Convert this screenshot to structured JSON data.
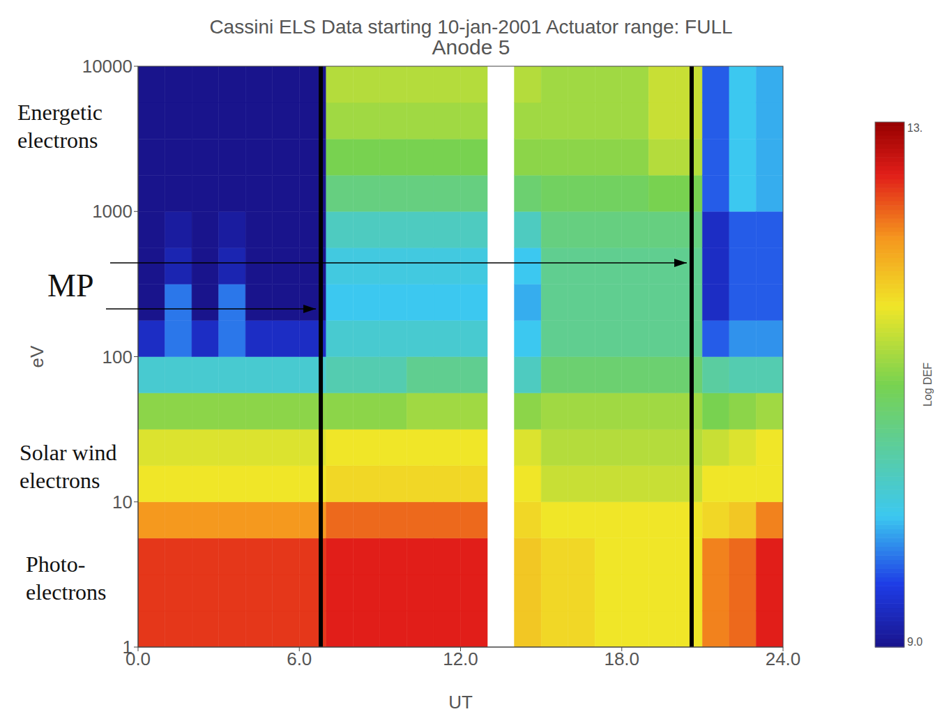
{
  "chart_data": {
    "type": "heatmap",
    "title": "Cassini ELS Data starting 10-jan-2001 Actuator range: FULL",
    "subtitle": "Anode 5",
    "x_label": "UT",
    "y_label": "eV",
    "log": "y",
    "grid": false,
    "xlim": [
      0,
      24
    ],
    "xticks": [
      {
        "value": 0,
        "label": "0.0"
      },
      {
        "value": 6,
        "label": "6.0"
      },
      {
        "value": 12,
        "label": "12.0"
      },
      {
        "value": 18,
        "label": "18.0"
      },
      {
        "value": 24,
        "label": "24.0"
      }
    ],
    "ylim": [
      1,
      10000
    ],
    "yticks": [
      1,
      10,
      100,
      1000,
      10000
    ],
    "x_edges": [
      0,
      1,
      2,
      3,
      4,
      5,
      6,
      7,
      8,
      9,
      10,
      11,
      12,
      13,
      14,
      15,
      16,
      17,
      18,
      19,
      20,
      21,
      22,
      23,
      24
    ],
    "y_edges": [
      1,
      1.778,
      3.162,
      5.623,
      10,
      17.78,
      31.62,
      56.23,
      100,
      177.8,
      316.2,
      562.3,
      1000,
      1778,
      3162,
      5623,
      10000
    ],
    "cells": [
      [
        12.5,
        12.5,
        12.5,
        12.1,
        11.6,
        11.5,
        11.1,
        10.2,
        9.3,
        9.0,
        9.0,
        9.0,
        9.0,
        9.0,
        9.0,
        9.0
      ],
      [
        12.5,
        12.5,
        12.5,
        12.1,
        11.6,
        11.5,
        11.1,
        10.2,
        9.7,
        9.7,
        9.2,
        9.1,
        9.0,
        9.0,
        9.0,
        9.0
      ],
      [
        12.5,
        12.5,
        12.5,
        12.1,
        11.6,
        11.5,
        11.1,
        10.2,
        9.3,
        9.0,
        9.0,
        9.0,
        9.0,
        9.0,
        9.0,
        9.0
      ],
      [
        12.5,
        12.5,
        12.5,
        12.1,
        11.6,
        11.5,
        11.1,
        10.2,
        9.7,
        9.7,
        9.2,
        9.1,
        9.0,
        9.0,
        9.0,
        9.0
      ],
      [
        12.5,
        12.5,
        12.5,
        12.1,
        11.6,
        11.5,
        11.1,
        10.2,
        9.3,
        9.0,
        9.0,
        9.0,
        9.0,
        9.0,
        9.0,
        9.0
      ],
      [
        12.5,
        12.5,
        12.5,
        12.1,
        11.6,
        11.5,
        11.1,
        10.2,
        9.3,
        9.0,
        9.0,
        9.0,
        9.0,
        9.0,
        9.0,
        9.0
      ],
      [
        12.5,
        12.5,
        12.5,
        12.1,
        11.6,
        11.5,
        11.1,
        10.2,
        9.3,
        9.0,
        9.0,
        9.0,
        9.0,
        9.0,
        9.0,
        9.0
      ],
      [
        12.6,
        12.6,
        12.6,
        12.3,
        11.7,
        11.6,
        11.1,
        10.4,
        10.2,
        10.0,
        10.1,
        10.3,
        10.7,
        11.0,
        11.2,
        11.3
      ],
      [
        12.6,
        12.6,
        12.6,
        12.3,
        11.7,
        11.6,
        11.1,
        10.4,
        10.2,
        10.0,
        10.1,
        10.3,
        10.7,
        11.0,
        11.2,
        11.3
      ],
      [
        12.6,
        12.6,
        12.6,
        12.3,
        11.7,
        11.6,
        11.1,
        10.4,
        10.2,
        10.0,
        10.1,
        10.3,
        10.7,
        11.0,
        11.2,
        11.3
      ],
      [
        12.6,
        12.6,
        12.6,
        12.3,
        11.7,
        11.6,
        11.2,
        10.6,
        10.2,
        10.0,
        10.1,
        10.3,
        10.7,
        11.0,
        11.2,
        11.3
      ],
      [
        12.6,
        12.6,
        12.6,
        12.3,
        11.7,
        11.6,
        11.2,
        10.6,
        10.2,
        10.0,
        10.1,
        10.3,
        10.7,
        11.0,
        11.2,
        11.3
      ],
      [
        12.6,
        12.6,
        12.6,
        12.3,
        11.7,
        11.6,
        11.2,
        10.6,
        10.2,
        10.0,
        10.1,
        10.3,
        10.7,
        11.0,
        11.2,
        11.3
      ],
      null,
      [
        11.8,
        11.8,
        11.8,
        11.7,
        11.6,
        11.5,
        11.1,
        10.3,
        10.0,
        9.9,
        10.0,
        10.3,
        10.8,
        11.1,
        11.2,
        11.3
      ],
      [
        11.7,
        11.7,
        11.7,
        11.6,
        11.4,
        11.3,
        11.2,
        10.8,
        10.6,
        10.6,
        10.6,
        10.7,
        10.9,
        11.1,
        11.2,
        11.2
      ],
      [
        11.7,
        11.7,
        11.7,
        11.6,
        11.4,
        11.3,
        11.2,
        10.8,
        10.6,
        10.6,
        10.6,
        10.7,
        10.9,
        11.1,
        11.2,
        11.2
      ],
      [
        11.6,
        11.6,
        11.6,
        11.6,
        11.4,
        11.3,
        11.2,
        10.8,
        10.6,
        10.6,
        10.6,
        10.7,
        10.9,
        11.1,
        11.2,
        11.2
      ],
      [
        11.6,
        11.6,
        11.6,
        11.6,
        11.4,
        11.3,
        11.2,
        10.8,
        10.6,
        10.6,
        10.6,
        10.7,
        10.9,
        11.1,
        11.2,
        11.2
      ],
      [
        11.6,
        11.6,
        11.6,
        11.6,
        11.4,
        11.3,
        11.2,
        10.8,
        10.6,
        10.6,
        10.6,
        10.7,
        11.0,
        11.3,
        11.4,
        11.4
      ],
      [
        11.6,
        11.6,
        11.6,
        11.6,
        11.4,
        11.3,
        11.2,
        10.8,
        10.6,
        10.6,
        10.6,
        10.7,
        11.0,
        11.3,
        11.4,
        11.4
      ],
      [
        12.2,
        12.2,
        12.2,
        11.7,
        11.6,
        11.4,
        11.0,
        10.5,
        9.6,
        9.3,
        9.3,
        9.3,
        9.6,
        9.6,
        9.6,
        9.6
      ],
      [
        12.3,
        12.3,
        12.3,
        11.8,
        11.6,
        11.5,
        11.1,
        10.4,
        9.8,
        9.6,
        9.6,
        9.6,
        10.0,
        10.0,
        10.0,
        10.0
      ],
      [
        12.6,
        12.6,
        12.6,
        12.2,
        11.6,
        11.6,
        11.2,
        10.4,
        9.8,
        9.6,
        9.6,
        9.6,
        9.9,
        9.9,
        9.9,
        9.9
      ]
    ],
    "colorbar": {
      "label": "Log DEF",
      "range": [
        9,
        13
      ],
      "ticks": [
        {
          "value": 9,
          "label": "9.0"
        },
        {
          "value": 13,
          "label": "13."
        }
      ]
    },
    "boundaries": {
      "label": "MP",
      "x": [
        6.8,
        20.6
      ]
    },
    "annotations": [
      "Energetic\nelectrons",
      "Solar wind\nelectrons",
      "Photo-\nelectrons"
    ]
  }
}
